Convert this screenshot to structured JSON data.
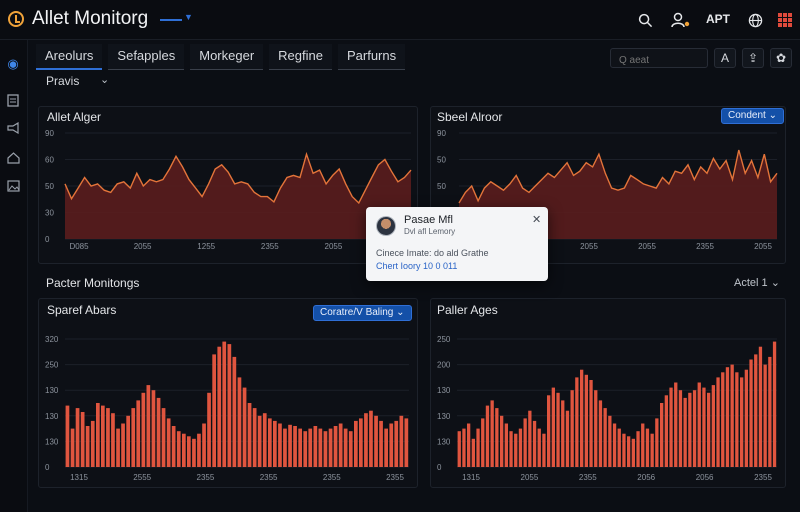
{
  "app": {
    "title": "Allet Monitorg"
  },
  "header": {
    "icons": [
      "search-icon",
      "user-alert-icon",
      "globe-icon",
      "grid-icon"
    ],
    "text": "APT"
  },
  "sidebar": {
    "icons": [
      "dashboard-icon",
      "document-icon",
      "megaphone-icon",
      "home-icon",
      "image-icon"
    ]
  },
  "tabs": [
    {
      "label": "Areolurs"
    },
    {
      "label": "Sefapples"
    },
    {
      "label": "Morkeger"
    },
    {
      "label": "Regfine"
    },
    {
      "label": "Parfurns"
    }
  ],
  "filter": {
    "label": "Pravis"
  },
  "search": {
    "placeholder": "Q aeat"
  },
  "toolbar": {
    "icons": [
      "text-icon",
      "export-icon",
      "settings-icon"
    ]
  },
  "panels": {
    "top_left": {
      "title": "Allet Alger"
    },
    "top_right": {
      "title": "Sbeel Alroor",
      "selector": "Condent"
    },
    "bottom_left": {
      "title": "Sparef Abars",
      "selector": "Coratre/V Baling"
    },
    "bottom_right": {
      "title": "Paller Ages"
    }
  },
  "section": {
    "title": "Pacter Monitongs",
    "selector": "Actel 1"
  },
  "popup": {
    "name": "Pasae Mfl",
    "role": "Dvl afl Lemory",
    "message": "Cinece Imate: do ald Grathe",
    "link": "Chert Ioory 10 0 011"
  },
  "colors": {
    "accent": "#2f6fd6",
    "series_line": "#e3743a",
    "series_fill": "#5a1d1d",
    "bar": "#e0553f",
    "background": "#0b0e14"
  },
  "chart_data": [
    {
      "type": "area",
      "title": "Allet Alger",
      "yticks": [
        "90",
        "60",
        "50",
        "30",
        "0"
      ],
      "xticks": [
        "D085",
        "2055",
        "1255",
        "2355",
        "2055",
        "2055"
      ],
      "values": [
        52,
        38,
        48,
        58,
        50,
        52,
        46,
        44,
        52,
        54,
        48,
        62,
        50,
        56,
        54,
        56,
        66,
        78,
        68,
        56,
        48,
        40,
        52,
        66,
        70,
        63,
        52,
        54,
        52,
        44,
        40,
        40,
        35,
        48,
        58,
        60,
        58,
        80,
        62,
        65,
        52,
        60,
        66,
        52,
        40,
        34,
        46,
        58,
        70,
        75,
        64,
        54,
        58,
        65
      ]
    },
    {
      "type": "area",
      "title": "Sbeel Alroor",
      "yticks": [
        "90",
        "50",
        "50",
        "30",
        "0"
      ],
      "xticks": [
        "2006",
        "2055",
        "2055",
        "2055",
        "2355",
        "2055"
      ],
      "values": [
        34,
        44,
        50,
        36,
        48,
        54,
        50,
        46,
        52,
        60,
        48,
        44,
        50,
        56,
        62,
        58,
        65,
        72,
        60,
        64,
        72,
        68,
        80,
        62,
        48,
        46,
        48,
        60,
        56,
        52,
        50,
        48,
        58,
        52,
        64,
        62,
        70,
        56,
        68,
        62,
        76,
        66,
        74,
        56,
        84,
        62,
        74,
        58,
        80,
        54,
        62
      ]
    },
    {
      "type": "bar",
      "title": "Sparef Abars",
      "yticks": [
        "320",
        "250",
        "130",
        "130",
        "130",
        "0"
      ],
      "xticks": [
        "1315",
        "2555",
        "2355",
        "2355",
        "2355",
        "2355"
      ],
      "values": [
        48,
        30,
        46,
        43,
        32,
        36,
        50,
        48,
        46,
        42,
        30,
        34,
        40,
        46,
        52,
        58,
        64,
        60,
        54,
        46,
        38,
        32,
        28,
        26,
        24,
        22,
        26,
        34,
        58,
        88,
        94,
        98,
        96,
        86,
        70,
        62,
        50,
        46,
        40,
        42,
        38,
        36,
        34,
        30,
        33,
        32,
        30,
        28,
        30,
        32,
        30,
        28,
        30,
        32,
        34,
        30,
        28,
        36,
        38,
        42,
        44,
        40,
        36,
        30,
        34,
        36,
        40,
        38
      ]
    },
    {
      "type": "bar",
      "title": "Paller Ages",
      "yticks": [
        "250",
        "200",
        "130",
        "130",
        "130",
        "0"
      ],
      "xticks": [
        "1315",
        "2055",
        "2355",
        "2056",
        "2056",
        "2355"
      ],
      "values": [
        28,
        30,
        34,
        22,
        30,
        38,
        48,
        52,
        46,
        40,
        34,
        28,
        26,
        30,
        38,
        44,
        36,
        30,
        26,
        56,
        62,
        58,
        52,
        44,
        60,
        70,
        76,
        72,
        68,
        60,
        52,
        46,
        40,
        34,
        30,
        26,
        24,
        22,
        28,
        34,
        30,
        26,
        38,
        50,
        56,
        62,
        66,
        60,
        54,
        58,
        60,
        66,
        62,
        58,
        64,
        70,
        74,
        78,
        80,
        74,
        70,
        76,
        84,
        88,
        94,
        80,
        86,
        98
      ]
    }
  ]
}
